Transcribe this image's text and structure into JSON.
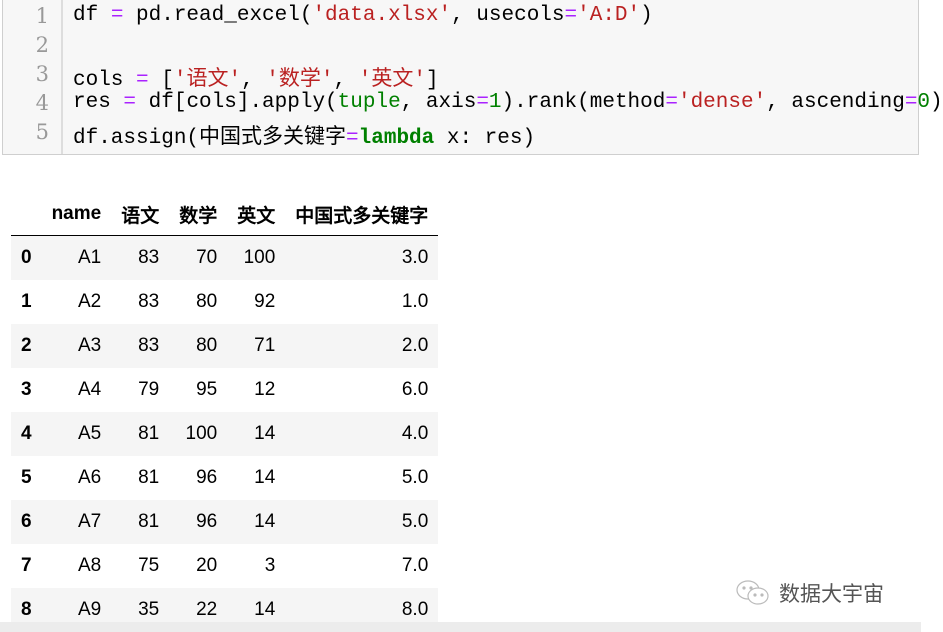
{
  "code": {
    "line_numbers": [
      "1",
      "2",
      "3",
      "4",
      "5"
    ],
    "lines": [
      [
        {
          "t": "df ",
          "c": ""
        },
        {
          "t": "=",
          "c": "o"
        },
        {
          "t": " pd.read_excel(",
          "c": ""
        },
        {
          "t": "'data.xlsx'",
          "c": "s"
        },
        {
          "t": ", usecols",
          "c": ""
        },
        {
          "t": "=",
          "c": "o"
        },
        {
          "t": "'A:D'",
          "c": "s"
        },
        {
          "t": ")",
          "c": ""
        }
      ],
      [],
      [
        {
          "t": "cols ",
          "c": ""
        },
        {
          "t": "=",
          "c": "o"
        },
        {
          "t": " [",
          "c": ""
        },
        {
          "t": "'语文'",
          "c": "s"
        },
        {
          "t": ", ",
          "c": ""
        },
        {
          "t": "'数学'",
          "c": "s"
        },
        {
          "t": ", ",
          "c": ""
        },
        {
          "t": "'英文'",
          "c": "s"
        },
        {
          "t": "]",
          "c": ""
        }
      ],
      [
        {
          "t": "res ",
          "c": ""
        },
        {
          "t": "=",
          "c": "o"
        },
        {
          "t": " df[cols].apply(",
          "c": ""
        },
        {
          "t": "tuple",
          "c": "b"
        },
        {
          "t": ", axis",
          "c": ""
        },
        {
          "t": "=",
          "c": "o"
        },
        {
          "t": "1",
          "c": "b"
        },
        {
          "t": ").rank(method",
          "c": ""
        },
        {
          "t": "=",
          "c": "o"
        },
        {
          "t": "'dense'",
          "c": "s"
        },
        {
          "t": ", ascending",
          "c": ""
        },
        {
          "t": "=",
          "c": "o"
        },
        {
          "t": "0",
          "c": "b"
        },
        {
          "t": ")",
          "c": ""
        }
      ],
      [
        {
          "t": "df.assign(中国式多关键字",
          "c": ""
        },
        {
          "t": "=",
          "c": "o"
        },
        {
          "t": "lambda",
          "c": "k"
        },
        {
          "t": " x: res)",
          "c": ""
        }
      ]
    ]
  },
  "table": {
    "columns": [
      "",
      "name",
      "语文",
      "数学",
      "英文",
      "中国式多关键字"
    ],
    "rows": [
      [
        "0",
        "A1",
        "83",
        "70",
        "100",
        "3.0"
      ],
      [
        "1",
        "A2",
        "83",
        "80",
        "92",
        "1.0"
      ],
      [
        "2",
        "A3",
        "83",
        "80",
        "71",
        "2.0"
      ],
      [
        "3",
        "A4",
        "79",
        "95",
        "12",
        "6.0"
      ],
      [
        "4",
        "A5",
        "81",
        "100",
        "14",
        "4.0"
      ],
      [
        "5",
        "A6",
        "81",
        "96",
        "14",
        "5.0"
      ],
      [
        "6",
        "A7",
        "81",
        "96",
        "14",
        "5.0"
      ],
      [
        "7",
        "A8",
        "75",
        "20",
        "3",
        "7.0"
      ],
      [
        "8",
        "A9",
        "35",
        "22",
        "14",
        "8.0"
      ]
    ]
  },
  "watermark": {
    "icon": "wechat-icon",
    "text": "数据大宇宙"
  }
}
